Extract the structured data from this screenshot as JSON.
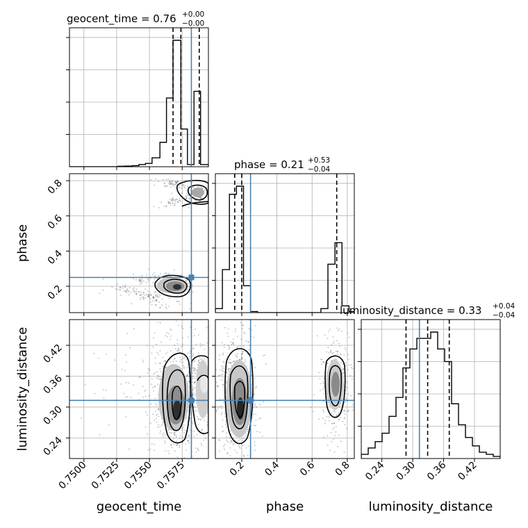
{
  "chart_data": {
    "type": "corner",
    "parameters": [
      "geocent_time",
      "phase",
      "luminosity_distance"
    ],
    "ranges": {
      "geocent_time": [
        0.7489,
        0.7595
      ],
      "phase": [
        0.05,
        0.84
      ],
      "luminosity_distance": [
        0.2,
        0.47
      ]
    },
    "truths": {
      "geocent_time": 0.7582,
      "phase": 0.25,
      "luminosity_distance": 0.313
    },
    "ticks": {
      "geocent_time": [
        "0.7500",
        "0.7525",
        "0.7550",
        "0.7575"
      ],
      "phase": [
        "0.2",
        "0.4",
        "0.6",
        "0.8"
      ],
      "luminosity_distance": [
        "0.24",
        "0.30",
        "0.36",
        "0.42"
      ]
    },
    "titles": {
      "geocent_time": {
        "name": "geocent_time",
        "value": "0.76",
        "plus": "+0.00",
        "minus": "−0.00"
      },
      "phase": {
        "name": "phase",
        "value": "0.21",
        "plus": "+0.53",
        "minus": "−0.04"
      },
      "luminosity_distance": {
        "name": "luminosity_distance",
        "value": "0.33",
        "plus": "+0.04",
        "minus": "−0.04"
      }
    },
    "quantiles": {
      "geocent_time": [
        0.7568,
        0.7574,
        0.7588
      ],
      "phase": [
        0.16,
        0.2,
        0.74
      ],
      "luminosity_distance": [
        0.287,
        0.329,
        0.371
      ]
    },
    "histograms": {
      "geocent_time": {
        "edges": [
          0.7489,
          0.7494,
          0.7499,
          0.7505,
          0.751,
          0.7515,
          0.7521,
          0.7526,
          0.7531,
          0.7537,
          0.7542,
          0.7547,
          0.7552,
          0.7558,
          0.7563,
          0.7568,
          0.7574,
          0.7579,
          0.7584,
          0.7589,
          0.7595
        ],
        "counts": [
          0,
          0,
          0,
          0,
          0,
          0,
          0,
          0.2,
          0.3,
          0.5,
          1,
          1.5,
          4,
          11,
          31,
          57,
          17,
          1,
          34,
          1
        ]
      },
      "phase": {
        "edges": [
          0.05,
          0.09,
          0.13,
          0.17,
          0.21,
          0.25,
          0.29,
          0.33,
          0.37,
          0.41,
          0.45,
          0.49,
          0.53,
          0.57,
          0.61,
          0.65,
          0.69,
          0.73,
          0.77,
          0.81,
          0.84
        ],
        "counts": [
          1.5,
          16,
          44,
          47,
          10,
          0.4,
          0,
          0,
          0,
          0,
          0,
          0,
          0,
          0,
          0,
          1.5,
          18,
          26,
          2.5,
          0.4
        ]
      },
      "luminosity_distance": {
        "edges": [
          0.2,
          0.2135,
          0.227,
          0.2405,
          0.254,
          0.2675,
          0.281,
          0.2945,
          0.308,
          0.3215,
          0.335,
          0.3485,
          0.362,
          0.3755,
          0.389,
          0.4025,
          0.416,
          0.4295,
          0.443,
          0.4565,
          0.47
        ],
        "counts": [
          2,
          5,
          8,
          12,
          20,
          29,
          43,
          52,
          57,
          57,
          60,
          52,
          46,
          26,
          16,
          10,
          6,
          3,
          2,
          1
        ]
      }
    },
    "xlabels": [
      "geocent_time",
      "phase",
      "luminosity_distance"
    ],
    "ylabels": [
      "phase",
      "luminosity_distance"
    ],
    "colors": {
      "truth": "#4682b4",
      "contour": "#000000",
      "grid": "#b0b0b0",
      "samples": "#000000"
    }
  }
}
